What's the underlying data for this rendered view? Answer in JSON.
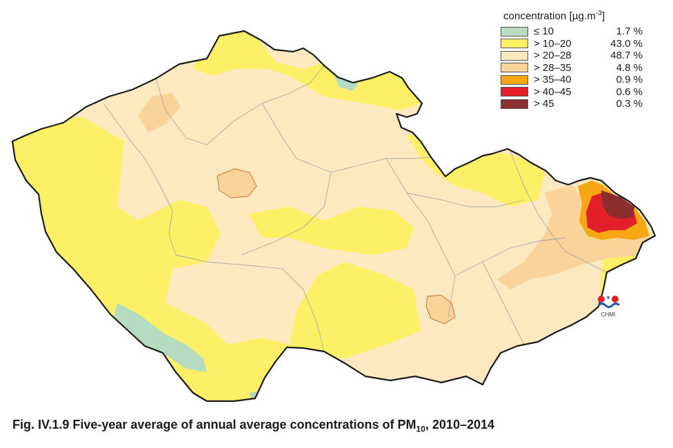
{
  "legend": {
    "title": "concentration [µg.m",
    "title_exp": "-3",
    "title_end": "]",
    "classes": [
      {
        "label": "≤ 10",
        "percent": "1.7 %",
        "color": "#b5dcc0"
      },
      {
        "label": "> 10–20",
        "percent": "43.0 %",
        "color": "#fdf067"
      },
      {
        "label": "> 20–28",
        "percent": "48.7 %",
        "color": "#fde9c0"
      },
      {
        "label": "> 28–35",
        "percent": "4.8 %",
        "color": "#f9d39a"
      },
      {
        "label": "> 35–40",
        "percent": "0.9 %",
        "color": "#f6a713"
      },
      {
        "label": "> 40–45",
        "percent": "0.6 %",
        "color": "#e3202a"
      },
      {
        "label": "> 45",
        "percent": "0.3 %",
        "color": "#8a2e2e"
      }
    ]
  },
  "caption": {
    "prefix": "Fig. IV.1.9  Five-year average of annual average concentrations of PM",
    "sub": "10",
    "suffix": ", 2010–2014"
  },
  "logo": {
    "text": "CHMI"
  }
}
